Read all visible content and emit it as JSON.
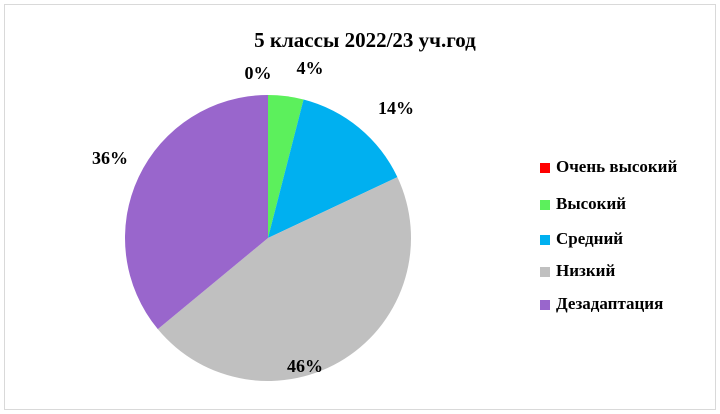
{
  "chart_data": {
    "type": "pie",
    "title": "5 классы 2022/23 уч.год",
    "categories": [
      "Очень высокий",
      "Высокий",
      "Средний",
      "Низкий",
      "Дезадаптация"
    ],
    "values": [
      0,
      4,
      14,
      46,
      36
    ],
    "value_labels": [
      "0%",
      "4%",
      "14%",
      "46%",
      "36%"
    ],
    "colors": [
      "#ff0000",
      "#5cf05c",
      "#00b0f0",
      "#c0c0c0",
      "#9966cc"
    ],
    "legend": "right"
  }
}
